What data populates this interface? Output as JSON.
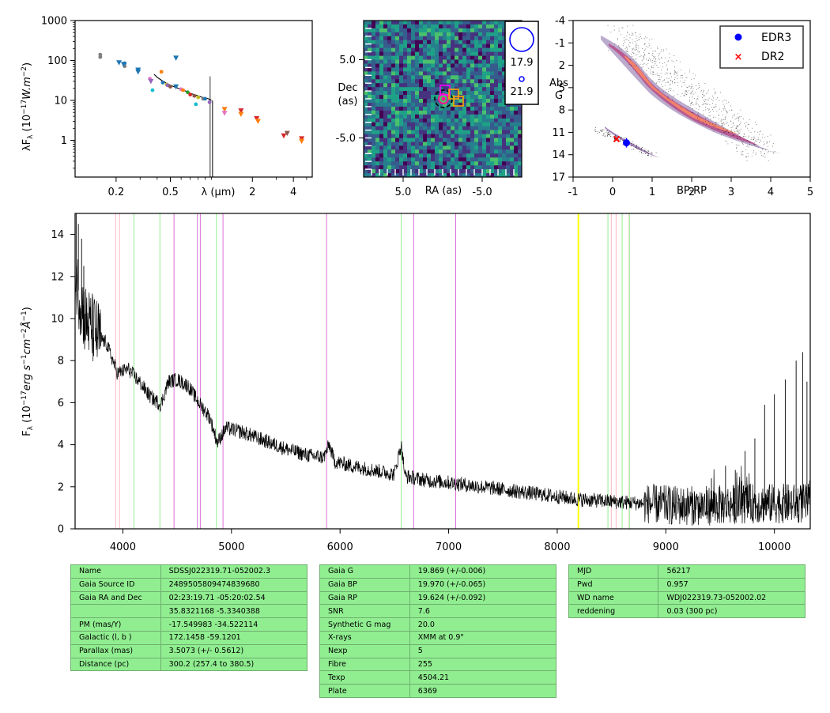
{
  "chart_data": [
    {
      "type": "scatter",
      "xlabel": "λ (μm)",
      "ylabel": "λF_λ (10^-17 W.m^-2)",
      "xscale": "log",
      "yscale": "log",
      "xlim": [
        0.1,
        5.5
      ],
      "ylim": [
        0.12,
        1000
      ],
      "xticks": [
        0.2,
        0.5,
        2,
        4
      ],
      "yticks": [
        1,
        10,
        100,
        1000
      ],
      "points": [
        {
          "x": 0.153,
          "y": 140,
          "marker": "dot",
          "color": "#7f7f7f"
        },
        {
          "x": 0.153,
          "y": 122,
          "marker": "dot",
          "color": "#7f7f7f"
        },
        {
          "x": 0.231,
          "y": 85,
          "marker": "dot",
          "color": "#1f77b4"
        },
        {
          "x": 0.231,
          "y": 72,
          "marker": "dot",
          "color": "#7f7f7f"
        },
        {
          "x": 0.21,
          "y": 88,
          "marker": "tri",
          "color": "#1f77b4"
        },
        {
          "x": 0.227,
          "y": 80,
          "marker": "tri",
          "color": "#1f77b4"
        },
        {
          "x": 0.29,
          "y": 58,
          "marker": "tri",
          "color": "#1f77b4"
        },
        {
          "x": 0.29,
          "y": 52,
          "marker": "tri",
          "color": "#1f77b4"
        },
        {
          "x": 0.354,
          "y": 35,
          "marker": "dot",
          "color": "#e377c2"
        },
        {
          "x": 0.36,
          "y": 30,
          "marker": "tri",
          "color": "#9467bd"
        },
        {
          "x": 0.37,
          "y": 18,
          "marker": "dot",
          "color": "#17becf"
        },
        {
          "x": 0.43,
          "y": 52,
          "marker": "dot",
          "color": "#ff7f0e"
        },
        {
          "x": 0.44,
          "y": 28,
          "marker": "dot",
          "color": "#1f77b4"
        },
        {
          "x": 0.47,
          "y": 25,
          "marker": "dot",
          "color": "#bcbd22"
        },
        {
          "x": 0.477,
          "y": 24,
          "marker": "dot",
          "color": "#9467bd"
        },
        {
          "x": 0.5,
          "y": 22,
          "marker": "dot",
          "color": "#8c564b"
        },
        {
          "x": 0.55,
          "y": 22,
          "marker": "tri",
          "color": "#1f77b4"
        },
        {
          "x": 0.55,
          "y": 115,
          "marker": "tri",
          "color": "#1f77b4"
        },
        {
          "x": 0.6,
          "y": 19,
          "marker": "dot",
          "color": "#e377c2"
        },
        {
          "x": 0.62,
          "y": 18,
          "marker": "dot",
          "color": "#ff7f0e"
        },
        {
          "x": 0.67,
          "y": 16,
          "marker": "dot",
          "color": "#2ca02c"
        },
        {
          "x": 0.7,
          "y": 14,
          "marker": "dot",
          "color": "#d62728"
        },
        {
          "x": 0.75,
          "y": 13,
          "marker": "dot",
          "color": "#8c564b"
        },
        {
          "x": 0.77,
          "y": 8,
          "marker": "dot",
          "color": "#17becf"
        },
        {
          "x": 0.8,
          "y": 12,
          "marker": "dot",
          "color": "#bcbd22"
        },
        {
          "x": 0.87,
          "y": 11,
          "marker": "dot",
          "color": "#7f7f7f"
        },
        {
          "x": 0.9,
          "y": 11,
          "marker": "dot",
          "color": "#1f77b4"
        },
        {
          "x": 0.97,
          "y": 9,
          "marker": "dot",
          "color": "#9467bd"
        },
        {
          "x": 1.25,
          "y": 6,
          "marker": "tri",
          "color": "#ff7f0e"
        },
        {
          "x": 1.25,
          "y": 4.8,
          "marker": "tri",
          "color": "#e377c2"
        },
        {
          "x": 1.65,
          "y": 5.5,
          "marker": "tri",
          "color": "#d62728"
        },
        {
          "x": 1.65,
          "y": 4.5,
          "marker": "tri",
          "color": "#ff7f0e"
        },
        {
          "x": 2.15,
          "y": 3.5,
          "marker": "tri",
          "color": "#d62728"
        },
        {
          "x": 2.2,
          "y": 3.0,
          "marker": "tri",
          "color": "#ff7f0e"
        },
        {
          "x": 3.4,
          "y": 1.3,
          "marker": "tri",
          "color": "#d62728"
        },
        {
          "x": 3.6,
          "y": 1.5,
          "marker": "tri",
          "color": "#8c564b"
        },
        {
          "x": 4.6,
          "y": 1.1,
          "marker": "tri",
          "color": "#d62728"
        },
        {
          "x": 4.6,
          "y": 0.95,
          "marker": "tri",
          "color": "#ff7f0e"
        }
      ],
      "spectrum": [
        [
          0.38,
          45
        ],
        [
          0.4,
          38
        ],
        [
          0.43,
          32
        ],
        [
          0.46,
          28
        ],
        [
          0.5,
          24
        ],
        [
          0.55,
          21
        ],
        [
          0.6,
          19
        ],
        [
          0.65,
          17
        ],
        [
          0.7,
          15
        ],
        [
          0.75,
          14
        ],
        [
          0.8,
          13
        ],
        [
          0.85,
          12
        ],
        [
          0.9,
          11.5
        ],
        [
          0.95,
          11
        ],
        [
          1.0,
          10
        ]
      ]
    },
    {
      "type": "heatmap",
      "xlabel": "RA (as)",
      "ylabel": "Dec (as)",
      "xlim": [
        10,
        -10
      ],
      "ylim": [
        -10,
        10
      ],
      "xticks": [
        5.0,
        -5.0
      ],
      "yticks": [
        5.0,
        -5.0
      ],
      "legend_mags": [
        "17.9",
        "21.9"
      ]
    },
    {
      "type": "scatter",
      "xlabel": "BP-RP",
      "ylabel": "Abs G",
      "xlim": [
        -1,
        5
      ],
      "ylim": [
        17,
        -4
      ],
      "xticks": [
        -1,
        0,
        1,
        2,
        3,
        4,
        5
      ],
      "yticks": [
        -4,
        -1,
        2,
        5,
        8,
        11,
        14,
        17
      ],
      "legend": [
        {
          "label": "EDR3",
          "marker": "circle",
          "color": "#0000ff"
        },
        {
          "label": "DR2",
          "marker": "x",
          "color": "#ff0000"
        }
      ],
      "legend_position": "top-right",
      "points": [
        {
          "series": "EDR3",
          "x": 0.35,
          "y": 12.4
        },
        {
          "series": "DR2",
          "x": 0.1,
          "y": 11.9
        }
      ]
    },
    {
      "type": "line",
      "xlabel": "",
      "ylabel": "F_λ (10^-17 erg s^-1 cm^-2 Å^-1)",
      "xlim": [
        3560,
        10330
      ],
      "ylim": [
        0,
        15
      ],
      "xticks": [
        4000,
        5000,
        6000,
        7000,
        8000,
        9000,
        10000
      ],
      "yticks": [
        0,
        2,
        4,
        6,
        8,
        10,
        12,
        14
      ],
      "vlines": [
        {
          "x": 3934,
          "color": "#ffb6c1"
        },
        {
          "x": 3969,
          "color": "#ffb6c1"
        },
        {
          "x": 4102,
          "color": "#90ee90"
        },
        {
          "x": 4341,
          "color": "#90ee90"
        },
        {
          "x": 4471,
          "color": "#da70d6"
        },
        {
          "x": 4686,
          "color": "#da70d6"
        },
        {
          "x": 4713,
          "color": "#da70d6"
        },
        {
          "x": 4861,
          "color": "#90ee90"
        },
        {
          "x": 4922,
          "color": "#da70d6"
        },
        {
          "x": 5876,
          "color": "#da70d6"
        },
        {
          "x": 6563,
          "color": "#90ee90"
        },
        {
          "x": 6678,
          "color": "#da70d6"
        },
        {
          "x": 7065,
          "color": "#da70d6"
        },
        {
          "x": 8195,
          "color": "#ffff00"
        },
        {
          "x": 8467,
          "color": "#90ee90"
        },
        {
          "x": 8498,
          "color": "#ffb6c1"
        },
        {
          "x": 8542,
          "color": "#ffb6c1"
        },
        {
          "x": 8598,
          "color": "#90ee90"
        },
        {
          "x": 8662,
          "color": "#ffb6c1"
        },
        {
          "x": 8665,
          "color": "#90ee90"
        }
      ],
      "spectrum_anchors": [
        [
          3560,
          12
        ],
        [
          3650,
          10
        ],
        [
          3750,
          9.3
        ],
        [
          3850,
          8.8
        ],
        [
          3950,
          7.4
        ],
        [
          4050,
          7.6
        ],
        [
          4150,
          7.0
        ],
        [
          4250,
          6.3
        ],
        [
          4350,
          5.9
        ],
        [
          4420,
          7.0
        ],
        [
          4500,
          7.1
        ],
        [
          4600,
          6.8
        ],
        [
          4700,
          6.0
        ],
        [
          4800,
          5.3
        ],
        [
          4870,
          4.1
        ],
        [
          4950,
          4.8
        ],
        [
          5100,
          4.6
        ],
        [
          5300,
          4.2
        ],
        [
          5500,
          3.8
        ],
        [
          5700,
          3.5
        ],
        [
          5850,
          3.4
        ],
        [
          5900,
          4.0
        ],
        [
          5950,
          3.2
        ],
        [
          6100,
          3.0
        ],
        [
          6300,
          2.8
        ],
        [
          6500,
          2.6
        ],
        [
          6563,
          4.0
        ],
        [
          6600,
          2.5
        ],
        [
          6800,
          2.3
        ],
        [
          7000,
          2.2
        ],
        [
          7300,
          2.0
        ],
        [
          7600,
          1.8
        ],
        [
          7900,
          1.6
        ],
        [
          8200,
          1.4
        ],
        [
          8500,
          1.3
        ],
        [
          8800,
          1.2
        ],
        [
          9100,
          1.1
        ],
        [
          9400,
          1.1
        ],
        [
          9700,
          1.2
        ],
        [
          10000,
          1.2
        ],
        [
          10330,
          1.2
        ]
      ],
      "spectrum_spikes": [
        [
          3570,
          15
        ],
        [
          3590,
          14.5
        ],
        [
          3620,
          13.8
        ],
        [
          3640,
          12.5
        ],
        [
          9420,
          2.4
        ],
        [
          9550,
          3.0
        ],
        [
          9640,
          2.8
        ],
        [
          9730,
          3.7
        ],
        [
          9820,
          4.3
        ],
        [
          9910,
          5.9
        ],
        [
          10000,
          6.4
        ],
        [
          10100,
          7.1
        ],
        [
          10200,
          8.0
        ],
        [
          10260,
          8.4
        ],
        [
          10300,
          7.0
        ]
      ]
    }
  ],
  "tables": {
    "t1": [
      [
        "Name",
        "SDSSJ022319.71-052002.3"
      ],
      [
        "Gaia Source ID",
        "2489505809474839680"
      ],
      [
        "Gaia RA and Dec",
        "02:23:19.71     -05:20:02.54"
      ],
      [
        "",
        "35.8321168     -5.3340388"
      ],
      [
        "PM (mas/Y)",
        "-17.549983     -34.522114"
      ],
      [
        "Galactic (l, b )",
        "172.1458     -59.1201"
      ],
      [
        "Parallax (mas)",
        "3.5073 (+/- 0.5612)"
      ],
      [
        "Distance (pc)",
        "300.2 (257.4 to 380.5)"
      ]
    ],
    "t2": [
      [
        "Gaia G",
        "19.869 (+/-0.006)"
      ],
      [
        "Gaia BP",
        "19.970 (+/-0.065)"
      ],
      [
        "Gaia RP",
        "19.624 (+/-0.092)"
      ],
      [
        "SNR",
        "7.6"
      ],
      [
        "Synthetic G mag",
        "20.0"
      ],
      [
        "X-rays",
        "XMM at 0.9\""
      ],
      [
        "Nexp",
        "5"
      ],
      [
        "Fibre",
        "255"
      ],
      [
        "Texp",
        "4504.21"
      ],
      [
        "Plate",
        "6369"
      ]
    ],
    "t3": [
      [
        "MJD",
        "56217"
      ],
      [
        "Pwd",
        "0.957"
      ],
      [
        "WD name",
        "WDJ022319.73-052002.02"
      ],
      [
        "reddening",
        "0.03 (300 pc)"
      ]
    ]
  }
}
